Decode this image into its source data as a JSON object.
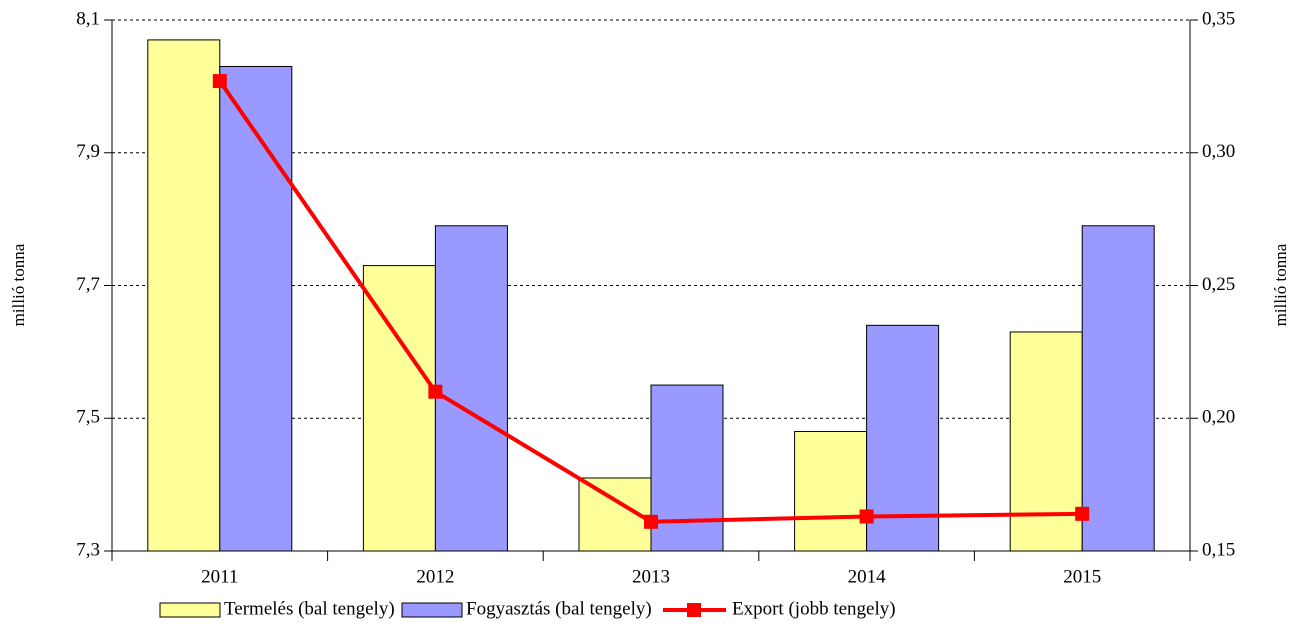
{
  "chart_data": {
    "type": "bar",
    "categories": [
      "2011",
      "2012",
      "2013",
      "2014",
      "2015"
    ],
    "series": [
      {
        "name": "Termelés (bal tengely)",
        "color": "#ffff99",
        "values": [
          8.07,
          7.73,
          7.41,
          7.48,
          7.63
        ]
      },
      {
        "name": "Fogyasztás (bal tengely)",
        "color": "#9999ff",
        "values": [
          8.03,
          7.79,
          7.55,
          7.64,
          7.79
        ]
      },
      {
        "name": "Export (jobb tengely)",
        "color": "#ff0000",
        "type": "line",
        "axis": "y2",
        "values": [
          0.327,
          0.21,
          0.161,
          0.163,
          0.164
        ]
      }
    ],
    "ylabel": "millió tonna",
    "y2label": "millió tonna",
    "ylim": [
      7.3,
      8.1
    ],
    "yticks": [
      {
        "value": 7.3,
        "label": "7,3"
      },
      {
        "value": 7.5,
        "label": "7,5"
      },
      {
        "value": 7.7,
        "label": "7,7"
      },
      {
        "value": 7.9,
        "label": "7,9"
      },
      {
        "value": 8.1,
        "label": "8,1"
      }
    ],
    "y2lim": [
      0.15,
      0.35
    ],
    "y2ticks": [
      {
        "value": 0.15,
        "label": "0,15"
      },
      {
        "value": 0.2,
        "label": "0,20"
      },
      {
        "value": 0.25,
        "label": "0,25"
      },
      {
        "value": 0.3,
        "label": "0,30"
      },
      {
        "value": 0.35,
        "label": "0,35"
      }
    ],
    "grid": true,
    "legend": "bottom"
  }
}
